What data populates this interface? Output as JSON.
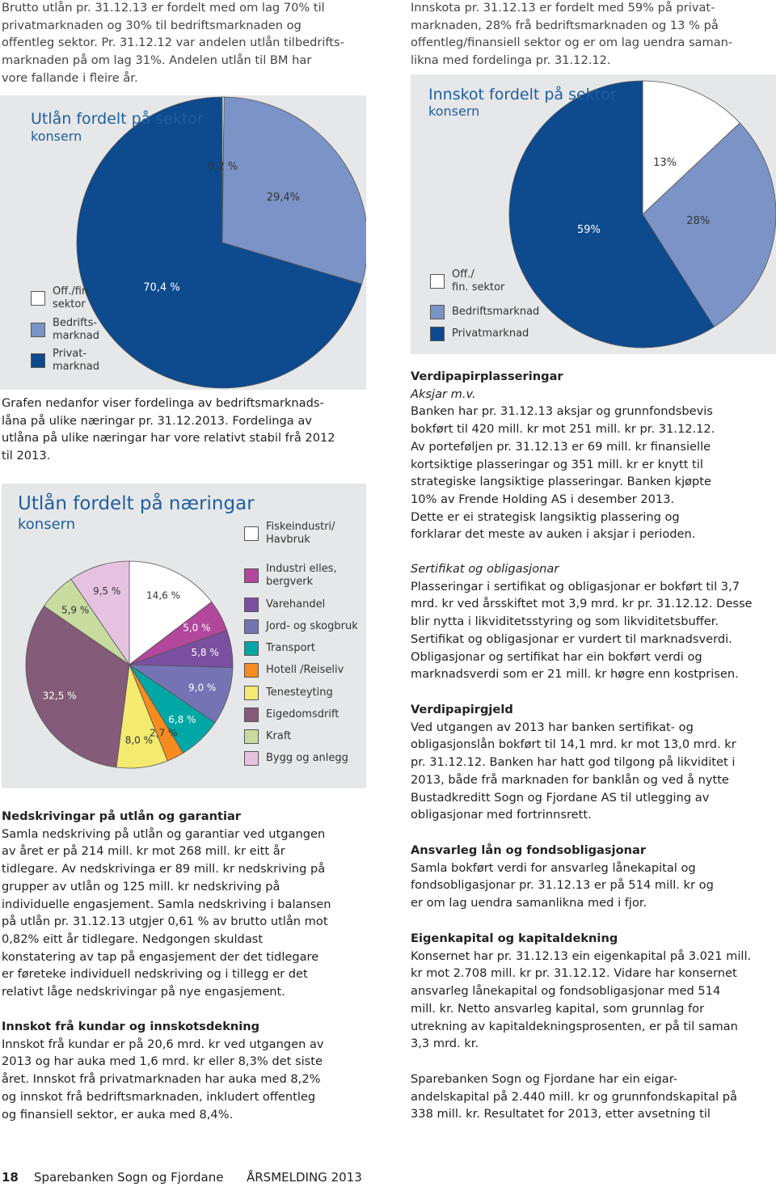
{
  "left_sections": [
    {
      "lines": [
        "Brutto utlån pr. 31.12.13 er fordelt med om lag 70% til",
        "privatmarknaden og 30% til bedriftsmarknaden og",
        "offentleg sektor. Pr. 31.12.12 var andelen utlån tilbedrifts-",
        "marknaden på om lag 31%. Andelen utlån til BM har",
        "vore fallande i fleire år."
      ]
    },
    {
      "lines": [
        "Grafen nedanfor viser fordelinga av bedriftsmarknads-",
        "låna på ulike næringar pr. 31.12.2013. Fordelinga av",
        "utlåna på ulike næringar har vore relativt stabil frå 2012",
        "til 2013."
      ]
    },
    {
      "heading": "Nedskrivingar på utlån og garantiar",
      "lines": [
        "Samla nedskriving på utlån og garantiar ved utgangen",
        "av året er på 214 mill. kr mot 268 mill. kr eitt år",
        "tidlegare. Av nedskrivinga er 89 mill. kr nedskriving på",
        "grupper av utlån og 125 mill. kr nedskriving på",
        "individuelle engasjement. Samla nedskriving i balansen",
        "på utlån pr. 31.12.13 utgjer 0,61 % av brutto utlån mot",
        "0,82% eitt år tidlegare. Nedgongen skuldast",
        "konstatering av tap på engasjement der det tidlegare",
        "er føreteke individuell nedskriving og i tillegg er det",
        "relativt låge nedskrivingar på nye engasjement."
      ]
    },
    {
      "heading": "Innskot frå kundar og innskotsdekning",
      "lines": [
        "Innskot frå kundar er på 20,6 mrd. kr ved utgangen av",
        "2013 og har auka med 1,6 mrd. kr eller 8,3% det siste",
        "året. Innskot frå privatmarknaden har auka med 8,2%",
        "og innskot frå bedriftsmarknaden, inkludert offentleg",
        "og finansiell sektor, er auka med 8,4%."
      ]
    }
  ],
  "right_sections": [
    {
      "lines": [
        "Innskota pr. 31.12.13 er fordelt med 59% på privat-",
        "marknaden, 28% frå bedriftsmarknaden og 13 % på",
        "offentleg/finansiell sektor og er om lag uendra saman-",
        "likna med fordelinga pr. 31.12.12."
      ]
    },
    {
      "heading": "Verdipapirplasseringar",
      "subheading": "Aksjar m.v.",
      "lines": [
        "Banken har pr. 31.12.13 aksjar og grunnfondsbevis",
        "bokført til 420 mill. kr mot 251 mill. kr pr. 31.12.12.",
        "Av porteføljen pr. 31.12.13 er 69 mill. kr finansielle",
        "kortsiktige plasseringar og 351 mill. kr er knytt til",
        "strategiske langsiktige plasseringar. Banken kjøpte",
        "10% av Frende Holding AS i desember 2013.",
        "Dette er ei strategisk langsiktig plassering og",
        "forklarar det meste av auken i aksjar i perioden."
      ]
    },
    {
      "subheading": "Sertifikat og obligasjonar",
      "lines": [
        "Plasseringar i sertifikat og obligasjonar er bokført til 3,7",
        "mrd. kr ved årsskiftet mot 3,9 mrd. kr pr. 31.12.12. Desse",
        "blir nytta i likviditetsstyring og som likviditetsbuffer.",
        "Sertifikat og obligasjonar er vurdert til marknadsverdi.",
        "Obligasjonar og sertifikat har ein bokført verdi og",
        "marknadsverdi som er 21 mill. kr høgre enn kostprisen."
      ]
    },
    {
      "heading": "Verdipapirgjeld",
      "lines": [
        "Ved utgangen av 2013 har banken sertifikat- og",
        "obligasjonslån bokført til 14,1 mrd. kr mot 13,0 mrd. kr",
        "pr. 31.12.12. Banken har hatt god tilgong på likviditet i",
        "2013, både frå marknaden for banklån og ved å nytte",
        "Bustadkreditt Sogn og Fjordane AS til utlegging av",
        "obligasjonar med fortrinnsrett."
      ]
    },
    {
      "heading": "Ansvarleg lån og fondsobligasjonar",
      "lines": [
        "Samla bokført verdi for ansvarleg lånekapital og",
        "fondsobligasjonar pr. 31.12.13 er på 514 mill. kr og",
        "er om lag uendra samanlikna med i fjor."
      ]
    },
    {
      "heading": "Eigenkapital og kapitaldekning",
      "lines": [
        "Konsernet har pr. 31.12.13 ein eigenkapital på 3.021 mill.",
        "kr mot 2.708 mill. kr pr. 31.12.12. Vidare har konsernet",
        "ansvarleg lånekapital og fondsobligasjonar med 514",
        "mill. kr. Netto ansvarleg kapital, som grunnlag for",
        "utrekning av kapitaldekningsprosenten, er på til saman",
        "3,3 mrd. kr."
      ]
    },
    {
      "lines": [
        "Sparebanken Sogn og Fjordane har ein eigar-",
        "andelskapital på 2.440 mill. kr og grunnfondskapital på",
        "338 mill. kr. Resultatet for 2013, etter avsetning til"
      ]
    }
  ],
  "chart_data": [
    {
      "type": "pie",
      "title": "Utlån fordelt på sektor",
      "subtitle": "konsern",
      "categories": [
        "Off./fin.\nsektor",
        "Bedrifts-\nmarknad",
        "Privat-\nmarknad"
      ],
      "values": [
        0.2,
        29.4,
        70.4
      ],
      "value_labels": [
        "0,2 %",
        "29,4%",
        "70,4 %"
      ],
      "colors": [
        "#ffffff",
        "#7b93c6",
        "#0d4a8e"
      ]
    },
    {
      "type": "pie",
      "title": "Innskot fordelt på sektor",
      "subtitle": "konsern",
      "categories": [
        "Off./\nfin. sektor",
        "Bedriftsmarknad",
        "Privatmarknad"
      ],
      "values": [
        13,
        28,
        59
      ],
      "value_labels": [
        "13%",
        "28%",
        "59%"
      ],
      "colors": [
        "#ffffff",
        "#7b93c6",
        "#0d4a8e"
      ]
    },
    {
      "type": "pie",
      "title": "Utlån fordelt på næringar",
      "subtitle": "konsern",
      "categories": [
        "Fiskeindustri/\nHavbruk",
        "Industri elles,\nbergverk",
        "Varehandel",
        "Jord- og skogbruk",
        "Transport",
        "Hotell /Reiseliv",
        "Tenesteyting",
        "Eigedomsdrift",
        "Kraft",
        "Bygg og anlegg"
      ],
      "values": [
        14.6,
        5.0,
        5.8,
        9.0,
        6.8,
        2.7,
        8.0,
        32.5,
        5.9,
        9.5
      ],
      "value_labels": [
        "14,6 %",
        "5,0 %",
        "5,8 %",
        "9,0 %",
        "6,8 %",
        "2,7 %",
        "8,0 %",
        "32,5 %",
        "5,9 %",
        "9,5 %"
      ],
      "colors": [
        "#ffffff",
        "#b2479b",
        "#7a4f9f",
        "#7474b5",
        "#00a7a5",
        "#f68b1f",
        "#f3ea6f",
        "#845b78",
        "#c9dca0",
        "#e5c3e0"
      ]
    }
  ],
  "footer": {
    "page": "18",
    "publisher": "Sparebanken Sogn og Fjordane",
    "report": "ÅRSMELDING 2013"
  }
}
